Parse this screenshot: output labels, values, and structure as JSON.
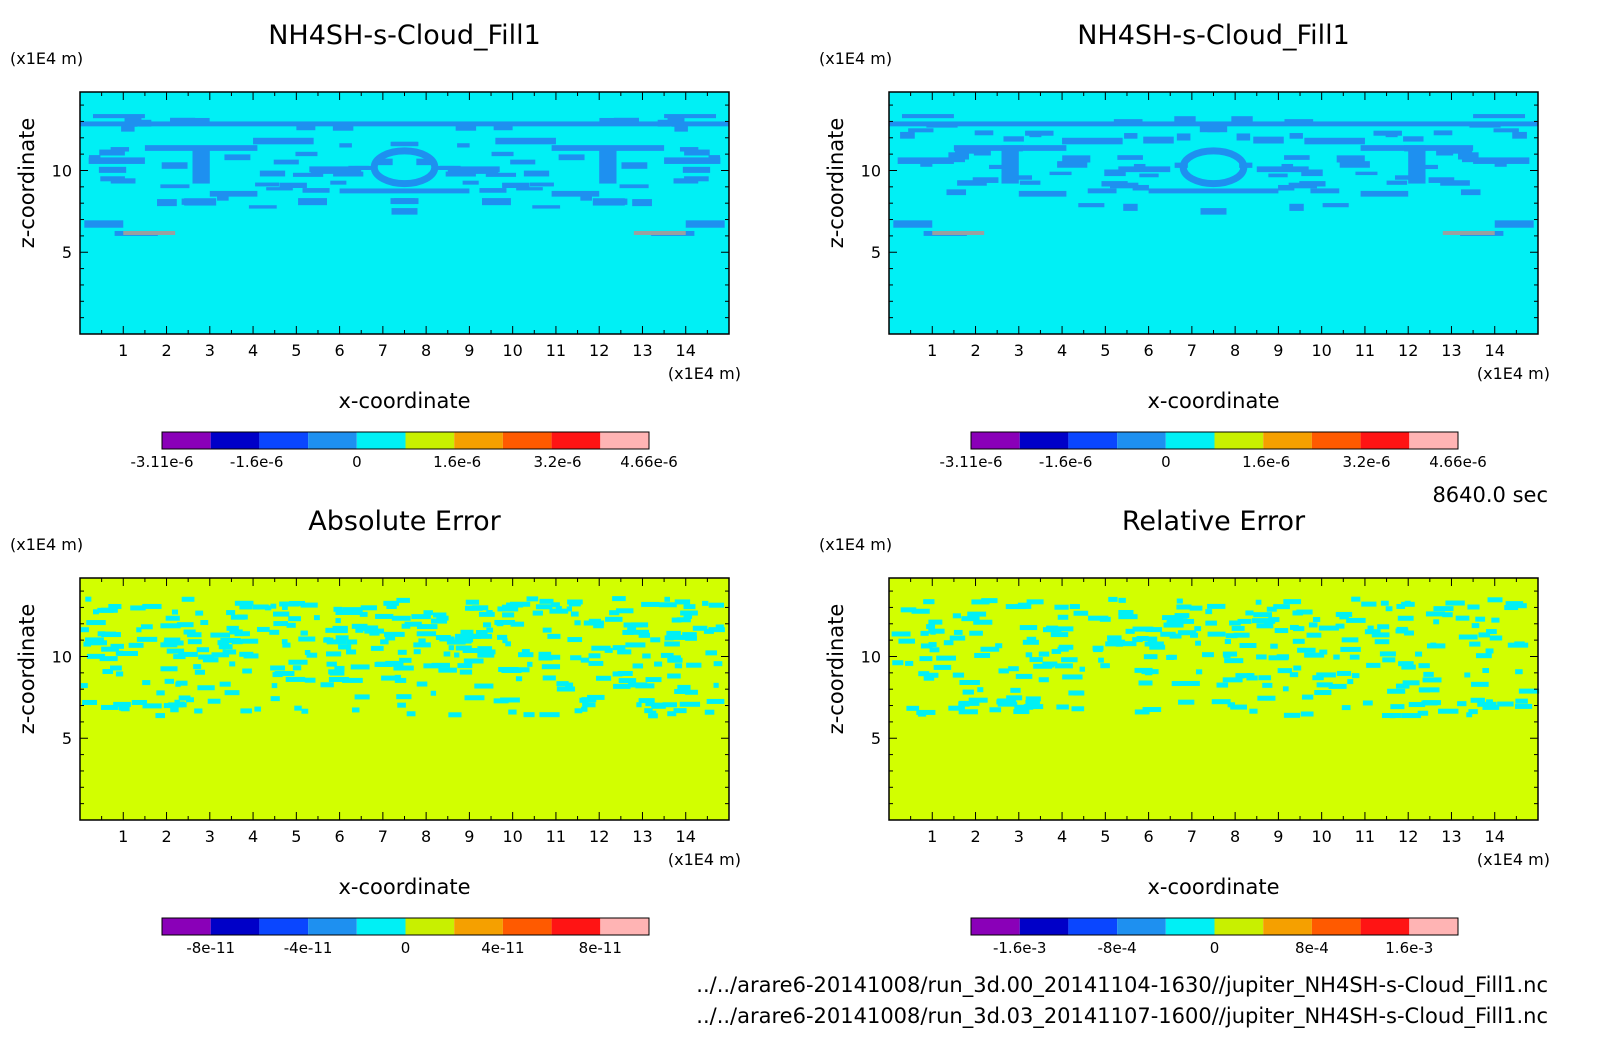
{
  "time_label": "8640.0 sec",
  "files": [
    "../../arare6-20141008/run_3d.00_20141104-1630//jupiter_NH4SH-s-Cloud_Fill1.nc",
    "../../arare6-20141008/run_3d.03_20141107-1600//jupiter_NH4SH-s-Cloud_Fill1.nc"
  ],
  "chart_data": [
    {
      "type": "heatmap",
      "title": "NH4SH-s-Cloud_Fill1",
      "xlabel": "x-coordinate",
      "ylabel": "z-coordinate",
      "x_unit": "(x1E4 m)",
      "y_unit": "(x1E4 m)",
      "xlim": [
        0,
        15
      ],
      "ylim": [
        0,
        14.8
      ],
      "x_ticks": [
        1,
        2,
        3,
        4,
        5,
        6,
        7,
        8,
        9,
        10,
        11,
        12,
        13,
        14
      ],
      "y_ticks": [
        5,
        10
      ],
      "background_color": "#00f0f5",
      "feature_color": "#1e90f0",
      "colorbar": {
        "colors": [
          "#8a00b8",
          "#0000c8",
          "#0a46ff",
          "#1e90f0",
          "#00f0f5",
          "#c8f000",
          "#f5a000",
          "#ff5a00",
          "#ff1414",
          "#ffb4b4"
        ],
        "tick_labels": [
          "-3.11e-6",
          "-1.6e-6",
          "0",
          "1.6e-6",
          "3.2e-6",
          "4.66e-6"
        ],
        "tick_values": [
          -3.11e-06,
          -1.6e-06,
          0,
          1.6e-06,
          3.2e-06,
          4.66e-06
        ],
        "range": [
          -3.11e-06,
          4.66e-06
        ]
      }
    },
    {
      "type": "heatmap",
      "title": "NH4SH-s-Cloud_Fill1",
      "xlabel": "x-coordinate",
      "ylabel": "z-coordinate",
      "x_unit": "(x1E4 m)",
      "y_unit": "(x1E4 m)",
      "xlim": [
        0,
        15
      ],
      "ylim": [
        0,
        14.8
      ],
      "x_ticks": [
        1,
        2,
        3,
        4,
        5,
        6,
        7,
        8,
        9,
        10,
        11,
        12,
        13,
        14
      ],
      "y_ticks": [
        5,
        10
      ],
      "background_color": "#00f0f5",
      "feature_color": "#1e90f0",
      "colorbar": {
        "colors": [
          "#8a00b8",
          "#0000c8",
          "#0a46ff",
          "#1e90f0",
          "#00f0f5",
          "#c8f000",
          "#f5a000",
          "#ff5a00",
          "#ff1414",
          "#ffb4b4"
        ],
        "tick_labels": [
          "-3.11e-6",
          "-1.6e-6",
          "0",
          "1.6e-6",
          "3.2e-6",
          "4.66e-6"
        ],
        "tick_values": [
          -3.11e-06,
          -1.6e-06,
          0,
          1.6e-06,
          3.2e-06,
          4.66e-06
        ],
        "range": [
          -3.11e-06,
          4.66e-06
        ]
      }
    },
    {
      "type": "heatmap",
      "title": "Absolute Error",
      "xlabel": "x-coordinate",
      "ylabel": "z-coordinate",
      "x_unit": "(x1E4 m)",
      "y_unit": "(x1E4 m)",
      "xlim": [
        0,
        15
      ],
      "ylim": [
        0,
        14.8
      ],
      "x_ticks": [
        1,
        2,
        3,
        4,
        5,
        6,
        7,
        8,
        9,
        10,
        11,
        12,
        13,
        14
      ],
      "y_ticks": [
        5,
        10
      ],
      "background_color": "#d2ff00",
      "feature_color": "#00f0f5",
      "colorbar": {
        "colors": [
          "#8a00b8",
          "#0000c8",
          "#0a46ff",
          "#1e90f0",
          "#00f0f5",
          "#c8f000",
          "#f5a000",
          "#ff5a00",
          "#ff1414",
          "#ffb4b4"
        ],
        "tick_labels": [
          "-8e-11",
          "-4e-11",
          "0",
          "4e-11",
          "8e-11"
        ],
        "tick_values": [
          -8e-11,
          -4e-11,
          0,
          4e-11,
          8e-11
        ],
        "range": [
          -1e-10,
          1e-10
        ]
      }
    },
    {
      "type": "heatmap",
      "title": "Relative Error",
      "xlabel": "x-coordinate",
      "ylabel": "z-coordinate",
      "x_unit": "(x1E4 m)",
      "y_unit": "(x1E4 m)",
      "xlim": [
        0,
        15
      ],
      "ylim": [
        0,
        14.8
      ],
      "x_ticks": [
        1,
        2,
        3,
        4,
        5,
        6,
        7,
        8,
        9,
        10,
        11,
        12,
        13,
        14
      ],
      "y_ticks": [
        5,
        10
      ],
      "background_color": "#d2ff00",
      "feature_color": "#00f0f5",
      "colorbar": {
        "colors": [
          "#8a00b8",
          "#0000c8",
          "#0a46ff",
          "#1e90f0",
          "#00f0f5",
          "#c8f000",
          "#f5a000",
          "#ff5a00",
          "#ff1414",
          "#ffb4b4"
        ],
        "tick_labels": [
          "-1.6e-3",
          "-8e-4",
          "0",
          "8e-4",
          "1.6e-3"
        ],
        "tick_values": [
          -0.0016,
          -0.0008,
          0,
          0.0008,
          0.0016
        ],
        "range": [
          -0.002,
          0.002
        ]
      }
    }
  ]
}
